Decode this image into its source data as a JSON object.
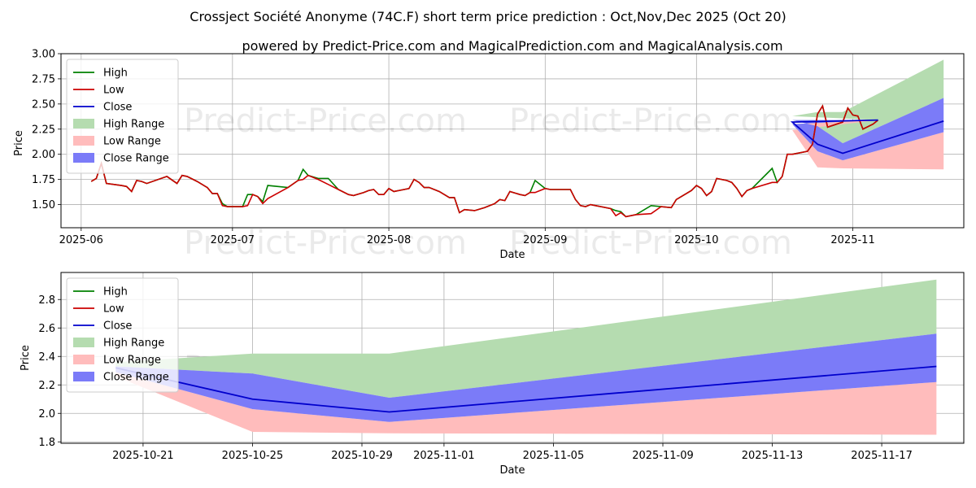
{
  "title": {
    "line1": "Crossject Société Anonyme (74C.F) short term price prediction : Oct,Nov,Dec 2025 (Oct 20)",
    "line2": "powered by Predict-Price.com and MagicalPrediction.com and MagicalAnalysis.com"
  },
  "watermark": "Predict-Price.com",
  "colors": {
    "high": "#008000",
    "low": "#cc0000",
    "close": "#0000cc",
    "high_range": "#b5dcb0",
    "low_range": "#ffbcbc",
    "close_range": "#7b7bf8"
  },
  "legend": [
    {
      "label": "High",
      "type": "line",
      "color": "#008000"
    },
    {
      "label": "Low",
      "type": "line",
      "color": "#cc0000"
    },
    {
      "label": "Close",
      "type": "line",
      "color": "#0000cc"
    },
    {
      "label": "High Range",
      "type": "patch",
      "color": "#b5dcb0"
    },
    {
      "label": "Low Range",
      "type": "patch",
      "color": "#ffbcbc"
    },
    {
      "label": "Close Range",
      "type": "patch",
      "color": "#7b7bf8"
    }
  ],
  "chart_data": [
    {
      "type": "line",
      "title": "Crossject Société Anonyme (74C.F) short term price prediction : Oct,Nov,Dec 2025 (Oct 20)",
      "xlabel": "Date",
      "ylabel": "Price",
      "x_domain": [
        "2025-05-28",
        "2025-11-23"
      ],
      "ylim": [
        1.27,
        3.0
      ],
      "x_ticks": [
        {
          "date": "2025-06-01",
          "label": "2025-06"
        },
        {
          "date": "2025-07-01",
          "label": "2025-07"
        },
        {
          "date": "2025-08-01",
          "label": "2025-08"
        },
        {
          "date": "2025-09-01",
          "label": "2025-09"
        },
        {
          "date": "2025-10-01",
          "label": "2025-10"
        },
        {
          "date": "2025-11-01",
          "label": "2025-11"
        }
      ],
      "y_ticks": [
        1.5,
        1.75,
        2.0,
        2.25,
        2.5,
        2.75,
        3.0
      ],
      "y_tick_labels": [
        "1.50",
        "1.75",
        "2.00",
        "2.25",
        "2.50",
        "2.75",
        "3.00"
      ],
      "history": [
        [
          "2025-06-03",
          1.73,
          1.73
        ],
        [
          "2025-06-04",
          1.76,
          1.76
        ],
        [
          "2025-06-05",
          1.91,
          1.91
        ],
        [
          "2025-06-06",
          1.71,
          1.71
        ],
        [
          "2025-06-09",
          1.69,
          1.69
        ],
        [
          "2025-06-10",
          1.68,
          1.68
        ],
        [
          "2025-06-11",
          1.63,
          1.63
        ],
        [
          "2025-06-12",
          1.74,
          1.74
        ],
        [
          "2025-06-13",
          1.73,
          1.73
        ],
        [
          "2025-06-14",
          1.71,
          1.71
        ],
        [
          "2025-06-18",
          1.78,
          1.78
        ],
        [
          "2025-06-20",
          1.71,
          1.71
        ],
        [
          "2025-06-21",
          1.79,
          1.79
        ],
        [
          "2025-06-22",
          1.78,
          1.78
        ],
        [
          "2025-06-24",
          1.73,
          1.73
        ],
        [
          "2025-06-26",
          1.67,
          1.67
        ],
        [
          "2025-06-27",
          1.61,
          1.61
        ],
        [
          "2025-06-28",
          1.61,
          1.61
        ],
        [
          "2025-06-29",
          1.51,
          1.49
        ],
        [
          "2025-06-30",
          1.48,
          1.48
        ],
        [
          "2025-07-03",
          1.48,
          1.48
        ],
        [
          "2025-07-04",
          1.6,
          1.49
        ],
        [
          "2025-07-05",
          1.6,
          1.6
        ],
        [
          "2025-07-06",
          1.58,
          1.58
        ],
        [
          "2025-07-07",
          1.53,
          1.51
        ],
        [
          "2025-07-08",
          1.69,
          1.56
        ],
        [
          "2025-07-12",
          1.67,
          1.67
        ],
        [
          "2025-07-14",
          1.74,
          1.74
        ],
        [
          "2025-07-15",
          1.85,
          1.75
        ],
        [
          "2025-07-16",
          1.79,
          1.79
        ],
        [
          "2025-07-18",
          1.76,
          1.75
        ],
        [
          "2025-07-20",
          1.76,
          1.7
        ],
        [
          "2025-07-22",
          1.65,
          1.65
        ],
        [
          "2025-07-24",
          1.6,
          1.6
        ],
        [
          "2025-07-25",
          1.59,
          1.59
        ],
        [
          "2025-07-27",
          1.62,
          1.62
        ],
        [
          "2025-07-28",
          1.64,
          1.64
        ],
        [
          "2025-07-29",
          1.65,
          1.65
        ],
        [
          "2025-07-30",
          1.6,
          1.6
        ],
        [
          "2025-07-31",
          1.6,
          1.6
        ],
        [
          "2025-08-01",
          1.66,
          1.66
        ],
        [
          "2025-08-02",
          1.63,
          1.63
        ],
        [
          "2025-08-03",
          1.64,
          1.64
        ],
        [
          "2025-08-05",
          1.66,
          1.66
        ],
        [
          "2025-08-06",
          1.75,
          1.75
        ],
        [
          "2025-08-07",
          1.72,
          1.72
        ],
        [
          "2025-08-08",
          1.67,
          1.67
        ],
        [
          "2025-08-09",
          1.67,
          1.67
        ],
        [
          "2025-08-11",
          1.63,
          1.63
        ],
        [
          "2025-08-12",
          1.6,
          1.6
        ],
        [
          "2025-08-13",
          1.57,
          1.57
        ],
        [
          "2025-08-14",
          1.57,
          1.57
        ],
        [
          "2025-08-15",
          1.42,
          1.42
        ],
        [
          "2025-08-16",
          1.45,
          1.45
        ],
        [
          "2025-08-18",
          1.44,
          1.44
        ],
        [
          "2025-08-20",
          1.47,
          1.47
        ],
        [
          "2025-08-21",
          1.49,
          1.49
        ],
        [
          "2025-08-22",
          1.51,
          1.51
        ],
        [
          "2025-08-23",
          1.55,
          1.55
        ],
        [
          "2025-08-24",
          1.54,
          1.54
        ],
        [
          "2025-08-25",
          1.63,
          1.63
        ],
        [
          "2025-08-27",
          1.6,
          1.6
        ],
        [
          "2025-08-28",
          1.59,
          1.59
        ],
        [
          "2025-08-29",
          1.62,
          1.62
        ],
        [
          "2025-08-30",
          1.74,
          1.62
        ],
        [
          "2025-09-01",
          1.66,
          1.66
        ],
        [
          "2025-09-02",
          1.65,
          1.65
        ],
        [
          "2025-09-06",
          1.65,
          1.65
        ],
        [
          "2025-09-07",
          1.55,
          1.55
        ],
        [
          "2025-09-08",
          1.49,
          1.49
        ],
        [
          "2025-09-09",
          1.48,
          1.48
        ],
        [
          "2025-09-10",
          1.5,
          1.5
        ],
        [
          "2025-09-11",
          1.49,
          1.49
        ],
        [
          "2025-09-14",
          1.46,
          1.46
        ],
        [
          "2025-09-15",
          1.44,
          1.39
        ],
        [
          "2025-09-16",
          1.43,
          1.42
        ],
        [
          "2025-09-17",
          1.38,
          1.38
        ],
        [
          "2025-09-19",
          1.4,
          1.4
        ],
        [
          "2025-09-22",
          1.49,
          1.41
        ],
        [
          "2025-09-24",
          1.48,
          1.48
        ],
        [
          "2025-09-26",
          1.47,
          1.47
        ],
        [
          "2025-09-27",
          1.55,
          1.55
        ],
        [
          "2025-09-30",
          1.64,
          1.64
        ],
        [
          "2025-10-01",
          1.69,
          1.69
        ],
        [
          "2025-10-02",
          1.66,
          1.66
        ],
        [
          "2025-10-03",
          1.59,
          1.59
        ],
        [
          "2025-10-04",
          1.63,
          1.63
        ],
        [
          "2025-10-05",
          1.76,
          1.76
        ],
        [
          "2025-10-07",
          1.74,
          1.74
        ],
        [
          "2025-10-08",
          1.72,
          1.72
        ],
        [
          "2025-10-09",
          1.66,
          1.66
        ],
        [
          "2025-10-10",
          1.58,
          1.58
        ],
        [
          "2025-10-11",
          1.64,
          1.64
        ],
        [
          "2025-10-12",
          1.66,
          1.66
        ],
        [
          "2025-10-16",
          1.86,
          1.72
        ],
        [
          "2025-10-17",
          1.72,
          1.72
        ],
        [
          "2025-10-18",
          1.78,
          1.78
        ],
        [
          "2025-10-19",
          2.0,
          2.0
        ],
        [
          "2025-10-20",
          2.0,
          2.0
        ],
        [
          "2025-10-23",
          2.03,
          2.03
        ],
        [
          "2025-10-24",
          2.1,
          2.1
        ],
        [
          "2025-10-25",
          2.4,
          2.4
        ],
        [
          "2025-10-26",
          2.48,
          2.48
        ],
        [
          "2025-10-27",
          2.27,
          2.27
        ],
        [
          "2025-10-30",
          2.32,
          2.32
        ],
        [
          "2025-10-31",
          2.46,
          2.46
        ],
        [
          "2025-11-01",
          2.39,
          2.39
        ],
        [
          "2025-11-02",
          2.38,
          2.38
        ],
        [
          "2025-11-03",
          2.25,
          2.25
        ],
        [
          "2025-11-05",
          2.3,
          2.3
        ],
        [
          "2025-11-06",
          2.34,
          2.34
        ]
      ],
      "forecast": {
        "dates": [
          "2025-11-06",
          "2025-10-20",
          "2025-10-25",
          "2025-10-30",
          "2025-11-19"
        ],
        "close": [
          2.34,
          2.32,
          2.1,
          2.01,
          2.33
        ],
        "high_range_upper": [
          2.34,
          2.38,
          2.42,
          2.42,
          2.94
        ],
        "close_range_upper": [
          2.34,
          2.34,
          2.28,
          2.11,
          2.56
        ],
        "close_range_lower": [
          2.34,
          2.3,
          2.03,
          1.94,
          2.22
        ],
        "low_range_lower": [
          2.34,
          2.24,
          1.87,
          1.86,
          1.85
        ]
      }
    },
    {
      "type": "area",
      "xlabel": "Date",
      "ylabel": "Price",
      "x_domain": [
        "2025-10-18",
        "2025-11-20"
      ],
      "ylim": [
        1.79,
        2.99
      ],
      "x_ticks": [
        "2025-10-21",
        "2025-10-25",
        "2025-10-29",
        "2025-11-01",
        "2025-11-05",
        "2025-11-09",
        "2025-11-13",
        "2025-11-17"
      ],
      "y_ticks": [
        1.8,
        2.0,
        2.2,
        2.4,
        2.6,
        2.8
      ],
      "y_tick_labels": [
        "1.8",
        "2.0",
        "2.2",
        "2.4",
        "2.6",
        "2.8"
      ],
      "series": {
        "dates": [
          "2025-10-20",
          "2025-10-25",
          "2025-10-30",
          "2025-11-19"
        ],
        "close": [
          2.32,
          2.1,
          2.01,
          2.33
        ],
        "high_range_upper": [
          2.36,
          2.42,
          2.42,
          2.94
        ],
        "close_range_upper": [
          2.33,
          2.28,
          2.11,
          2.56
        ],
        "close_range_lower": [
          2.29,
          2.03,
          1.94,
          2.22
        ],
        "low_range_lower": [
          2.26,
          1.87,
          1.86,
          1.85
        ]
      }
    }
  ]
}
